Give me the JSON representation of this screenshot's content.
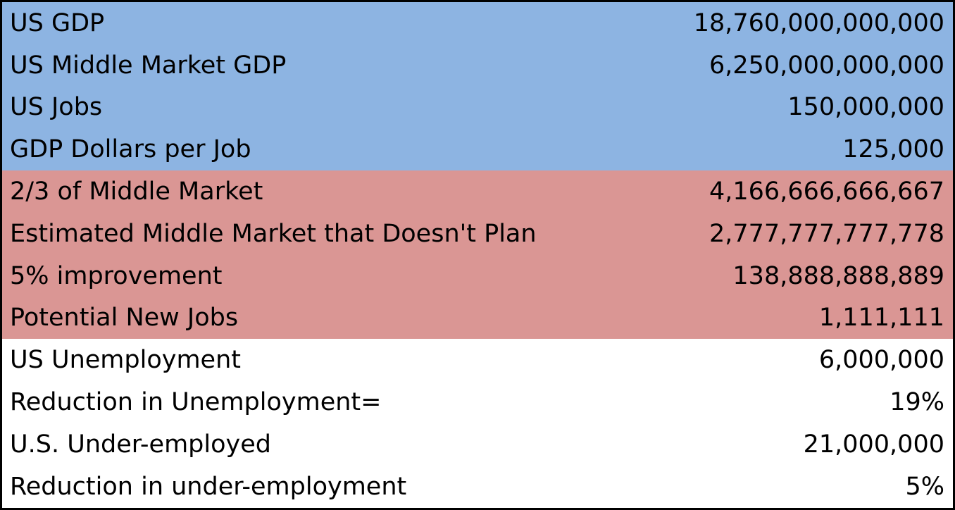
{
  "table": {
    "sections": [
      {
        "rows": [
          [
            "US GDP",
            "18,760,000,000,000"
          ],
          [
            "US Middle Market GDP",
            "6,250,000,000,000"
          ],
          [
            "US Jobs",
            "150,000,000"
          ],
          [
            "GDP Dollars per Job",
            "125,000"
          ]
        ]
      },
      {
        "rows": [
          [
            "2/3 of Middle Market",
            "4,166,666,666,667"
          ],
          [
            "Estimated Middle Market that Doesn't Plan",
            "2,777,777,777,778"
          ],
          [
            "5% improvement",
            "138,888,888,889"
          ],
          [
            "Potential New Jobs",
            "1,111,111"
          ]
        ]
      },
      {
        "rows": [
          [
            "US Unemployment",
            "6,000,000"
          ],
          [
            "Reduction in Unemployment=",
            "19%"
          ],
          [
            "U.S. Under-employed",
            "21,000,000"
          ],
          [
            "Reduction in under-employment",
            "5%"
          ]
        ]
      }
    ]
  }
}
